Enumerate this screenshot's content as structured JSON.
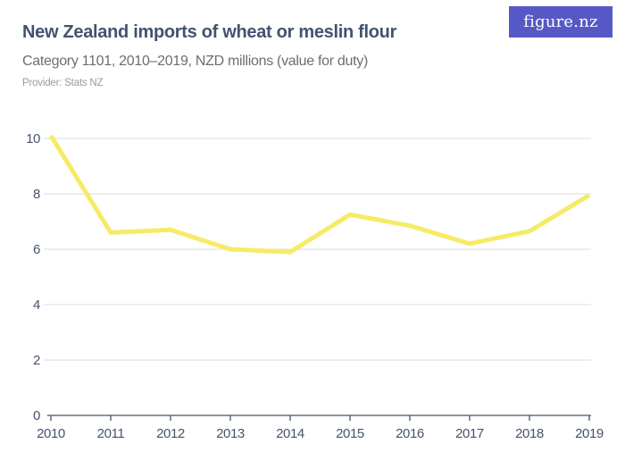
{
  "header": {
    "title": "New Zealand imports of wheat or meslin flour",
    "subtitle": "Category 1101, 2010–2019, NZD millions (value for duty)",
    "provider": "Provider: Stats NZ",
    "logo_text": "figure.nz"
  },
  "colors": {
    "line": "#F6EB66",
    "axis": "#45536D",
    "gridline": "#DBDBDB",
    "title": "#41536F",
    "subtitle": "#6D6D6D",
    "provider": "#9A9A9A",
    "logo_bg": "#5659C5",
    "logo_text": "#FFFFFF"
  },
  "chart_data": {
    "type": "line",
    "title": "New Zealand imports of wheat or meslin flour",
    "subtitle": "Category 1101, 2010–2019, NZD millions (value for duty)",
    "x": [
      "2010",
      "2011",
      "2012",
      "2013",
      "2014",
      "2015",
      "2016",
      "2017",
      "2018",
      "2019"
    ],
    "series": [
      {
        "name": "Imports of wheat or meslin flour (NZD millions, value for duty)",
        "values": [
          10.1,
          6.6,
          6.7,
          6.0,
          5.9,
          7.25,
          6.85,
          6.2,
          6.65,
          7.95
        ]
      }
    ],
    "xlabel": "",
    "ylabel": "",
    "ylim": [
      0,
      10.5
    ],
    "yticks": [
      0,
      2,
      4,
      6,
      8,
      10
    ],
    "grid": true,
    "legend": "none"
  }
}
